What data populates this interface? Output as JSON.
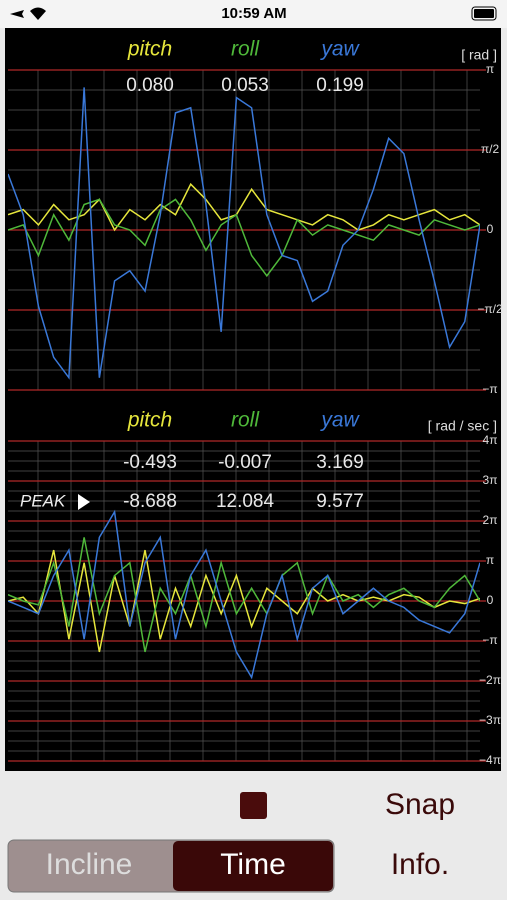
{
  "status_bar": {
    "time": "10:59 AM"
  },
  "chart_data": [
    {
      "type": "line",
      "unit_label": "[ rad ]",
      "ylim": [
        -3.14159,
        3.14159
      ],
      "yticks": [
        {
          "value": 3.14159,
          "label": "π"
        },
        {
          "value": 1.5708,
          "label": "π/2"
        },
        0,
        {
          "value": -1.5708,
          "label": "−π/2"
        },
        {
          "value": -3.14159,
          "label": "−π"
        }
      ],
      "series": [
        {
          "name": "pitch",
          "color": "#e6e63c",
          "readout": "0.080",
          "values": [
            0.3,
            0.4,
            0.1,
            0.5,
            0.2,
            0.3,
            0.6,
            0.0,
            0.4,
            0.2,
            0.5,
            0.3,
            0.9,
            0.6,
            0.2,
            0.3,
            0.8,
            0.4,
            0.3,
            0.2,
            0.1,
            0.3,
            0.2,
            0.0,
            0.1,
            0.3,
            0.2,
            0.3,
            0.4,
            0.2,
            0.3,
            0.1
          ]
        },
        {
          "name": "roll",
          "color": "#4fb83a",
          "readout": "0.053",
          "values": [
            0.0,
            0.1,
            -0.5,
            0.3,
            -0.2,
            0.5,
            0.6,
            0.1,
            0.0,
            -0.3,
            0.4,
            0.6,
            0.2,
            -0.4,
            0.1,
            0.3,
            -0.5,
            -0.9,
            -0.5,
            0.2,
            -0.1,
            0.1,
            0.0,
            -0.1,
            -0.2,
            0.1,
            0.0,
            -0.1,
            0.2,
            0.1,
            0.0,
            0.1
          ]
        },
        {
          "name": "yaw",
          "color": "#3a78d8",
          "readout": "0.199",
          "values": [
            1.1,
            0.3,
            -1.5,
            -2.5,
            -2.9,
            2.8,
            -2.9,
            -1.0,
            -0.8,
            -1.2,
            0.3,
            2.3,
            2.4,
            0.5,
            -2.0,
            2.6,
            2.4,
            0.3,
            -0.5,
            -0.6,
            -1.4,
            -1.2,
            -0.3,
            0.0,
            0.8,
            1.8,
            1.5,
            0.2,
            -1.0,
            -2.3,
            -1.8,
            0.1
          ]
        }
      ]
    },
    {
      "type": "line",
      "unit_label": "[ rad / sec ]",
      "peak_label": "PEAK",
      "ylim": [
        -12.566,
        12.566
      ],
      "yticks": [
        {
          "value": 12.566,
          "label": "4π"
        },
        {
          "value": 9.4248,
          "label": "3π"
        },
        {
          "value": 6.2832,
          "label": "2π"
        },
        {
          "value": 3.14159,
          "label": "π"
        },
        0,
        {
          "value": -3.14159,
          "label": "−π"
        },
        {
          "value": -6.2832,
          "label": "−2π"
        },
        {
          "value": -9.4248,
          "label": "−3π"
        },
        {
          "value": -12.566,
          "label": "−4π"
        }
      ],
      "series": [
        {
          "name": "pitch",
          "color": "#e6e63c",
          "readout": "-0.493",
          "peak": "-8.688",
          "values": [
            0,
            0.3,
            -1,
            4,
            -3,
            3,
            -4,
            2,
            -2,
            4,
            -3,
            1,
            -2,
            2,
            -1,
            2,
            -2,
            1,
            0,
            -1,
            1,
            0,
            0.5,
            0,
            0.3,
            0,
            0.5,
            0.3,
            -0.5,
            0,
            -0.2,
            0.2
          ]
        },
        {
          "name": "roll",
          "color": "#4fb83a",
          "readout": "-0.007",
          "peak": "12.084",
          "values": [
            0.5,
            0,
            -0.3,
            3,
            -2,
            5,
            -1,
            2,
            3,
            -4,
            1,
            -1,
            2,
            -2,
            3,
            -1,
            1,
            -1,
            2,
            3,
            -1,
            2,
            0,
            0.5,
            -0.5,
            0.5,
            1,
            0,
            -0.5,
            1,
            2,
            0
          ]
        },
        {
          "name": "yaw",
          "color": "#3a78d8",
          "readout": "3.169",
          "peak": "9.577",
          "values": [
            0,
            -0.5,
            -1,
            2,
            4,
            -3,
            5,
            7,
            -2,
            3,
            5,
            -3,
            2,
            4,
            0,
            -4,
            -6,
            -1,
            2,
            -3,
            1,
            2,
            -1,
            0,
            1,
            0,
            -0.5,
            -1.5,
            -2,
            -2.5,
            -1,
            3
          ]
        }
      ]
    }
  ],
  "controls": {
    "snap": "Snap",
    "info": "Info.",
    "tabs": [
      "Incline",
      "Time"
    ]
  }
}
